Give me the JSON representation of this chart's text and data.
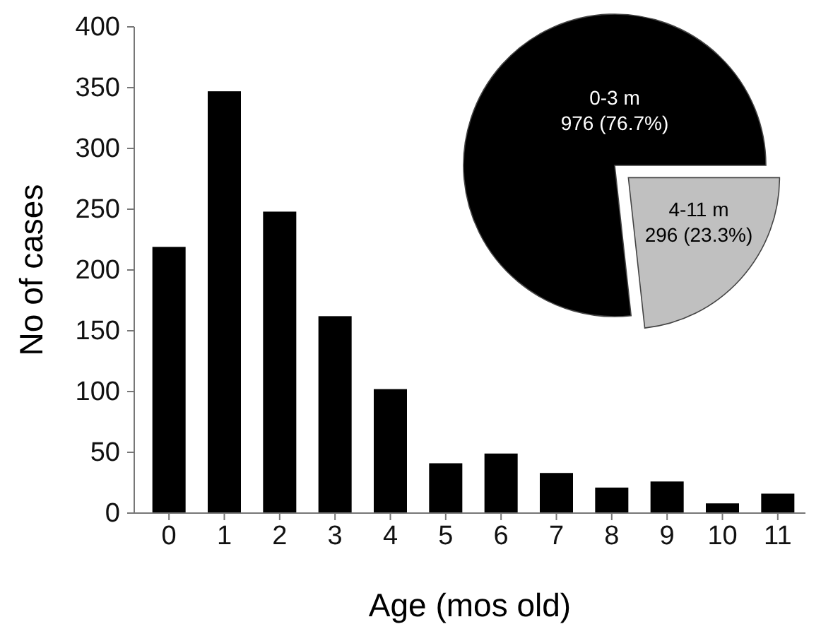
{
  "chart_data": [
    {
      "type": "bar",
      "xlabel": "Age (mos old)",
      "ylabel": "No of cases",
      "categories": [
        "0",
        "1",
        "2",
        "3",
        "4",
        "5",
        "6",
        "7",
        "8",
        "9",
        "10",
        "11"
      ],
      "values": [
        219,
        347,
        248,
        162,
        102,
        41,
        49,
        33,
        21,
        26,
        8,
        16
      ],
      "color": "#000000",
      "ylim": [
        0,
        400
      ],
      "yticks": [
        0,
        50,
        100,
        150,
        200,
        250,
        300,
        350,
        400
      ],
      "grid": false
    },
    {
      "type": "pie",
      "categories": [
        "0-3 m",
        "4-11 m"
      ],
      "values": [
        976,
        296
      ],
      "colors": [
        "#000000",
        "#c0c0c0"
      ],
      "value_labels": [
        "976 (76.7%)",
        "296 (23.3%)"
      ]
    }
  ]
}
